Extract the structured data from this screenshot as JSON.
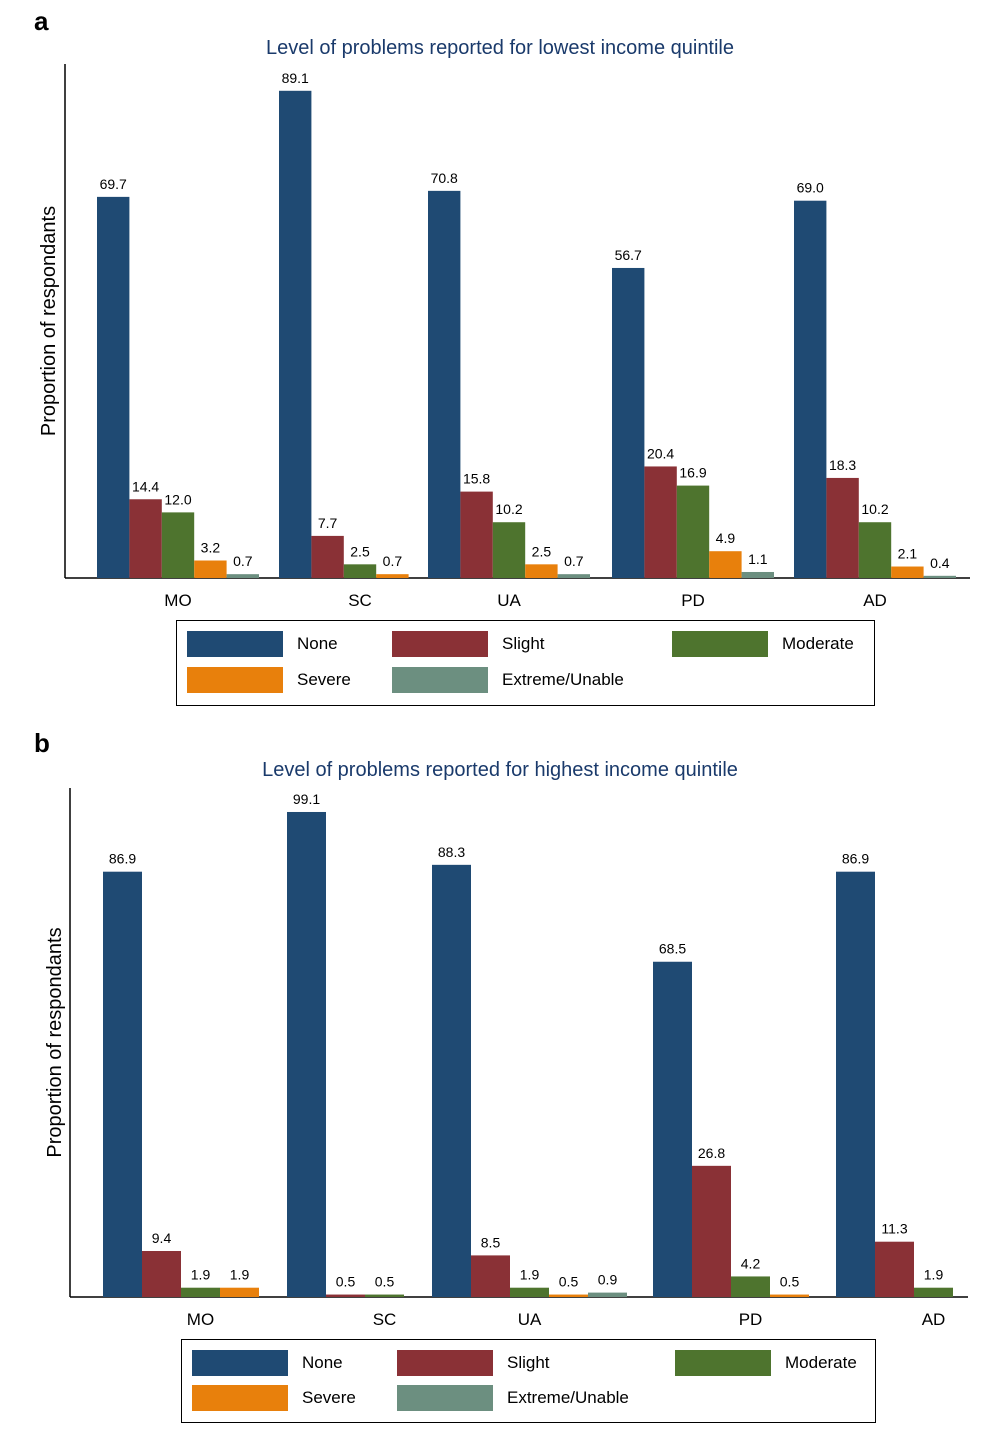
{
  "figure": {
    "colors": {
      "None": "#1f4a73",
      "Slight": "#8a3136",
      "Moderate": "#4e742e",
      "Severe": "#e8800c",
      "Extreme/Unable": "#6c8f80"
    }
  },
  "panels": [
    {
      "letter": "a",
      "title": "Level of problems reported for lowest income quintile",
      "legend": [
        "None",
        "Slight",
        "Moderate",
        "Severe",
        "Extreme/Unable"
      ]
    },
    {
      "letter": "b",
      "title": "Level of problems reported for highest income quintile",
      "legend": [
        "None",
        "Slight",
        "Moderate",
        "Severe",
        "Extreme/Unable"
      ]
    }
  ],
  "chart_data": [
    {
      "type": "bar",
      "title": "Level of problems reported for lowest income quintile",
      "ylabel": "Proportion of respondants",
      "xlabel": "",
      "categories": [
        "MO",
        "SC",
        "UA",
        "PD",
        "AD"
      ],
      "ylim": [
        0,
        94
      ],
      "legend_position": "bottom",
      "series": [
        {
          "name": "None",
          "values": [
            69.7,
            89.1,
            70.8,
            56.7,
            69.0
          ],
          "labels": [
            "69.7",
            "89.1",
            "70.8",
            "56.7",
            "69.0"
          ]
        },
        {
          "name": "Slight",
          "values": [
            14.4,
            7.7,
            15.8,
            20.4,
            18.3
          ],
          "labels": [
            "14.4",
            "7.7",
            "15.8",
            "20.4",
            "18.3"
          ]
        },
        {
          "name": "Moderate",
          "values": [
            12.0,
            2.5,
            10.2,
            16.9,
            10.2
          ],
          "labels": [
            "12.0",
            "2.5",
            "10.2",
            "16.9",
            "10.2"
          ]
        },
        {
          "name": "Severe",
          "values": [
            3.2,
            0.7,
            2.5,
            4.9,
            2.1
          ],
          "labels": [
            "3.2",
            "0.7",
            "2.5",
            "4.9",
            "2.1"
          ]
        },
        {
          "name": "Extreme/Unable",
          "values": [
            0.7,
            null,
            0.7,
            1.1,
            0.4
          ],
          "labels": [
            "0.7",
            "",
            "0.7",
            "1.1",
            "0.4"
          ]
        }
      ]
    },
    {
      "type": "bar",
      "title": "Level of problems reported for highest income quintile",
      "ylabel": "Proportion of respondants",
      "xlabel": "",
      "categories": [
        "MO",
        "SC",
        "UA",
        "PD",
        "AD"
      ],
      "ylim": [
        0,
        104
      ],
      "legend_position": "bottom",
      "series": [
        {
          "name": "None",
          "values": [
            86.9,
            99.1,
            88.3,
            68.5,
            86.9
          ],
          "labels": [
            "86.9",
            "99.1",
            "88.3",
            "68.5",
            "86.9"
          ]
        },
        {
          "name": "Slight",
          "values": [
            9.4,
            0.5,
            8.5,
            26.8,
            11.3
          ],
          "labels": [
            "9.4",
            "0.5",
            "8.5",
            "26.8",
            "11.3"
          ]
        },
        {
          "name": "Moderate",
          "values": [
            1.9,
            0.5,
            1.9,
            4.2,
            1.9
          ],
          "labels": [
            "1.9",
            "0.5",
            "1.9",
            "4.2",
            "1.9"
          ]
        },
        {
          "name": "Severe",
          "values": [
            1.9,
            null,
            0.5,
            0.5,
            null
          ],
          "labels": [
            "1.9",
            "",
            "0.5",
            "0.5",
            ""
          ]
        },
        {
          "name": "Extreme/Unable",
          "values": [
            null,
            null,
            0.9,
            null,
            null
          ],
          "labels": [
            "",
            "",
            "0.9",
            "",
            ""
          ]
        }
      ]
    }
  ]
}
